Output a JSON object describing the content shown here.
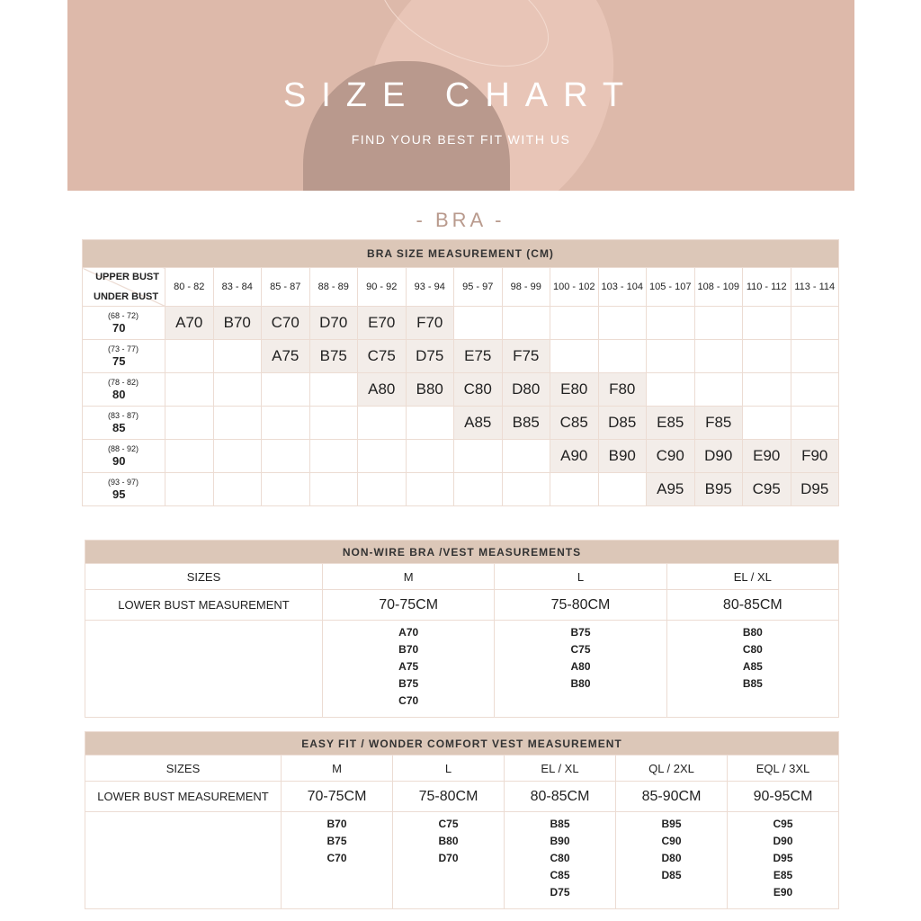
{
  "banner": {
    "title": "SIZE CHART",
    "subtitle": "FIND YOUR BEST FIT WITH US"
  },
  "section_title": "- BRA -",
  "bra_table": {
    "title": "BRA SIZE MEASUREMENT (CM)",
    "corner_upper": "UPPER BUST",
    "corner_under": "UNDER BUST",
    "upper_bust": [
      "80 - 82",
      "83 - 84",
      "85 - 87",
      "88 - 89",
      "90 - 92",
      "93 - 94",
      "95 - 97",
      "98 - 99",
      "100 - 102",
      "103 - 104",
      "105 - 107",
      "108 - 109",
      "110 - 112",
      "113 - 114"
    ],
    "rows": [
      {
        "range": "(68 - 72)",
        "under": "70",
        "cells": [
          "A70",
          "B70",
          "C70",
          "D70",
          "E70",
          "F70",
          "",
          "",
          "",
          "",
          "",
          "",
          "",
          ""
        ]
      },
      {
        "range": "(73 - 77)",
        "under": "75",
        "cells": [
          "",
          "",
          "A75",
          "B75",
          "C75",
          "D75",
          "E75",
          "F75",
          "",
          "",
          "",
          "",
          "",
          ""
        ]
      },
      {
        "range": "(78 - 82)",
        "under": "80",
        "cells": [
          "",
          "",
          "",
          "",
          "A80",
          "B80",
          "C80",
          "D80",
          "E80",
          "F80",
          "",
          "",
          "",
          ""
        ]
      },
      {
        "range": "(83 - 87)",
        "under": "85",
        "cells": [
          "",
          "",
          "",
          "",
          "",
          "",
          "A85",
          "B85",
          "C85",
          "D85",
          "E85",
          "F85",
          "",
          ""
        ]
      },
      {
        "range": "(88 - 92)",
        "under": "90",
        "cells": [
          "",
          "",
          "",
          "",
          "",
          "",
          "",
          "",
          "A90",
          "B90",
          "C90",
          "D90",
          "E90",
          "F90"
        ]
      },
      {
        "range": "(93 - 97)",
        "under": "95",
        "cells": [
          "",
          "",
          "",
          "",
          "",
          "",
          "",
          "",
          "",
          "",
          "A95",
          "B95",
          "C95",
          "D95"
        ]
      }
    ]
  },
  "nonwire_table": {
    "title": "NON-WIRE BRA /VEST MEASUREMENTS",
    "sizes_label": "SIZES",
    "measurement_label": "LOWER BUST MEASUREMENT",
    "columns": [
      {
        "size": "M",
        "measurement": "70-75CM",
        "bra_sizes": [
          "A70",
          "B70",
          "A75",
          "B75",
          "C70"
        ]
      },
      {
        "size": "L",
        "measurement": "75-80CM",
        "bra_sizes": [
          "B75",
          "C75",
          "A80",
          "B80"
        ]
      },
      {
        "size": "EL / XL",
        "measurement": "80-85CM",
        "bra_sizes": [
          "B80",
          "C80",
          "A85",
          "B85"
        ]
      }
    ]
  },
  "easyfit_table": {
    "title": "EASY FIT  / WONDER COMFORT VEST MEASUREMENT",
    "sizes_label": "SIZES",
    "measurement_label": "LOWER BUST MEASUREMENT",
    "columns": [
      {
        "size": "M",
        "measurement": "70-75CM",
        "bra_sizes": [
          "B70",
          "B75",
          "C70"
        ]
      },
      {
        "size": "L",
        "measurement": "75-80CM",
        "bra_sizes": [
          "C75",
          "B80",
          "D70"
        ]
      },
      {
        "size": "EL / XL",
        "measurement": "80-85CM",
        "bra_sizes": [
          "B85",
          "B90",
          "C80",
          "C85",
          "D75"
        ]
      },
      {
        "size": "QL / 2XL",
        "measurement": "85-90CM",
        "bra_sizes": [
          "B95",
          "C90",
          "D80",
          "D85"
        ]
      },
      {
        "size": "EQL / 3XL",
        "measurement": "90-95CM",
        "bra_sizes": [
          "C95",
          "D90",
          "D95",
          "E85",
          "E90"
        ]
      }
    ]
  },
  "colors": {
    "banner": "#ddb9aa",
    "header_bar": "#dcc7b8",
    "shade": "#f3ede9",
    "accent": "#b99a8d"
  }
}
